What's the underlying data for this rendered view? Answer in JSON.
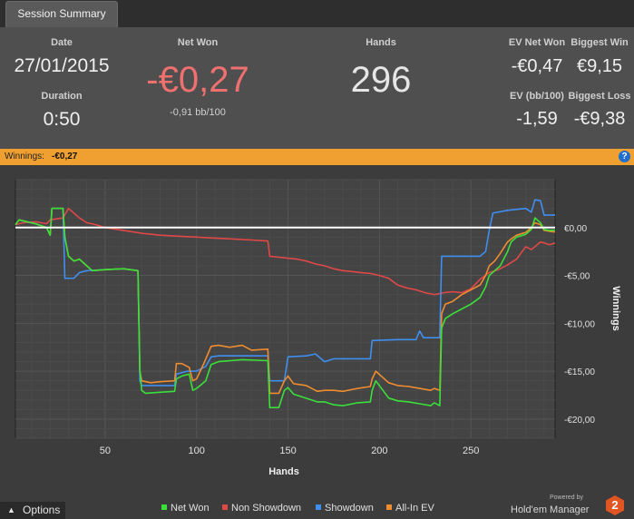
{
  "tab": {
    "label": "Session Summary"
  },
  "summary": {
    "date_label": "Date",
    "date_value": "27/01/2015",
    "duration_label": "Duration",
    "duration_value": "0:50",
    "net_won_label": "Net Won",
    "net_won_value": "-€0,27",
    "net_won_bb": "-0,91 bb/100",
    "hands_label": "Hands",
    "hands_value": "296",
    "ev_net_won_label": "EV Net Won",
    "ev_net_won_value": "-€0,47",
    "biggest_win_label": "Biggest Win",
    "biggest_win_value": "€9,15",
    "ev_bb_label": "EV (bb/100)",
    "ev_bb_value": "-1,59",
    "biggest_loss_label": "Biggest Loss",
    "biggest_loss_value": "-€9,38"
  },
  "winnings_bar": {
    "label": "Winnings:",
    "value": "-€0,27",
    "help": "?"
  },
  "colors": {
    "net_won": "#3adf3a",
    "non_showdown": "#e04848",
    "showdown": "#3f8ff0",
    "allin_ev": "#f08c30",
    "zero_line": "#ffffff",
    "net_won_value": "#f07070"
  },
  "chart_data": {
    "type": "line",
    "xlabel": "Hands",
    "ylabel": "Winnings",
    "xlim": [
      1,
      296
    ],
    "ylim": [
      -22,
      5
    ],
    "x_ticks": [
      50,
      100,
      150,
      200,
      250
    ],
    "x_tick_labels": [
      "50",
      "100",
      "150",
      "200",
      "250"
    ],
    "y_ticks": [
      0,
      -5,
      -10,
      -15,
      -20
    ],
    "y_tick_labels": [
      "€0,00",
      "-€5,00",
      "-€10,00",
      "-€15,00",
      "-€20,00"
    ],
    "grid": true,
    "legend_position": "bottom",
    "series": [
      {
        "name": "Net Won",
        "color_key": "net_won",
        "points": [
          [
            1,
            0.3
          ],
          [
            3,
            0.8
          ],
          [
            12,
            0.4
          ],
          [
            18,
            0
          ],
          [
            20,
            -0.8
          ],
          [
            21,
            2
          ],
          [
            27,
            2
          ],
          [
            28,
            -1
          ],
          [
            30,
            -3
          ],
          [
            33,
            -3.5
          ],
          [
            36,
            -3.3
          ],
          [
            40,
            -4
          ],
          [
            43,
            -4.5
          ],
          [
            50,
            -4.4
          ],
          [
            60,
            -4.3
          ],
          [
            68,
            -4.5
          ],
          [
            69,
            -14.8
          ],
          [
            70,
            -17
          ],
          [
            72,
            -17.3
          ],
          [
            80,
            -17.2
          ],
          [
            88,
            -17.1
          ],
          [
            89,
            -15.8
          ],
          [
            92,
            -15.5
          ],
          [
            96,
            -15.3
          ],
          [
            98,
            -17
          ],
          [
            100,
            -16.8
          ],
          [
            105,
            -16
          ],
          [
            108,
            -14.3
          ],
          [
            112,
            -14
          ],
          [
            125,
            -13.8
          ],
          [
            139,
            -13.9
          ],
          [
            140,
            -18.8
          ],
          [
            145,
            -18.8
          ],
          [
            148,
            -17
          ],
          [
            150,
            -16.7
          ],
          [
            153,
            -17.4
          ],
          [
            166,
            -18.2
          ],
          [
            170,
            -18.2
          ],
          [
            175,
            -18.5
          ],
          [
            180,
            -18.6
          ],
          [
            188,
            -18.3
          ],
          [
            195,
            -18.2
          ],
          [
            196,
            -17
          ],
          [
            198,
            -16
          ],
          [
            205,
            -17.8
          ],
          [
            210,
            -18.1
          ],
          [
            216,
            -18.2
          ],
          [
            222,
            -18.4
          ],
          [
            228,
            -18.6
          ],
          [
            230,
            -18.3
          ],
          [
            233,
            -18.6
          ],
          [
            234,
            -10.5
          ],
          [
            236,
            -9.5
          ],
          [
            240,
            -9
          ],
          [
            245,
            -8.5
          ],
          [
            250,
            -8
          ],
          [
            255,
            -7.3
          ],
          [
            258,
            -6.2
          ],
          [
            260,
            -5
          ],
          [
            263,
            -4.5
          ],
          [
            266,
            -4
          ],
          [
            270,
            -2.5
          ],
          [
            272,
            -1.5
          ],
          [
            275,
            -1
          ],
          [
            280,
            -0.7
          ],
          [
            283,
            -0.2
          ],
          [
            285,
            1
          ],
          [
            288,
            0.5
          ],
          [
            290,
            -0.2
          ],
          [
            293,
            -0.3
          ],
          [
            296,
            -0.27
          ]
        ]
      },
      {
        "name": "Non Showdown",
        "color_key": "non_showdown",
        "points": [
          [
            1,
            0.3
          ],
          [
            5,
            0.5
          ],
          [
            12,
            0.6
          ],
          [
            18,
            0.4
          ],
          [
            20,
            0.8
          ],
          [
            27,
            1
          ],
          [
            30,
            2
          ],
          [
            33,
            1.5
          ],
          [
            36,
            1
          ],
          [
            40,
            0.5
          ],
          [
            45,
            0.3
          ],
          [
            50,
            0
          ],
          [
            60,
            -0.3
          ],
          [
            70,
            -0.6
          ],
          [
            80,
            -0.8
          ],
          [
            90,
            -0.9
          ],
          [
            100,
            -1
          ],
          [
            110,
            -1.1
          ],
          [
            120,
            -1.2
          ],
          [
            130,
            -1.3
          ],
          [
            139,
            -1.4
          ],
          [
            140,
            -3
          ],
          [
            145,
            -3.1
          ],
          [
            150,
            -3.2
          ],
          [
            155,
            -3.3
          ],
          [
            160,
            -3.5
          ],
          [
            165,
            -3.8
          ],
          [
            170,
            -4
          ],
          [
            175,
            -4.3
          ],
          [
            180,
            -4.5
          ],
          [
            185,
            -4.6
          ],
          [
            190,
            -4.7
          ],
          [
            195,
            -4.8
          ],
          [
            200,
            -5
          ],
          [
            205,
            -5.3
          ],
          [
            210,
            -6
          ],
          [
            215,
            -6.3
          ],
          [
            220,
            -6.5
          ],
          [
            225,
            -6.8
          ],
          [
            230,
            -7
          ],
          [
            235,
            -6.8
          ],
          [
            240,
            -6.7
          ],
          [
            245,
            -6.8
          ],
          [
            250,
            -6.4
          ],
          [
            255,
            -5.4
          ],
          [
            260,
            -4.7
          ],
          [
            265,
            -4.4
          ],
          [
            270,
            -3.9
          ],
          [
            275,
            -3.3
          ],
          [
            278,
            -2.5
          ],
          [
            280,
            -2
          ],
          [
            283,
            -2.3
          ],
          [
            285,
            -2
          ],
          [
            288,
            -1.5
          ],
          [
            290,
            -1.6
          ],
          [
            293,
            -1.8
          ],
          [
            296,
            -1.6
          ]
        ]
      },
      {
        "name": "Showdown",
        "color_key": "showdown",
        "points": [
          [
            1,
            0.3
          ],
          [
            3,
            0.8
          ],
          [
            12,
            0.4
          ],
          [
            18,
            0
          ],
          [
            20,
            -0.8
          ],
          [
            21,
            2
          ],
          [
            27,
            2
          ],
          [
            28,
            -5.3
          ],
          [
            33,
            -5.3
          ],
          [
            36,
            -4.7
          ],
          [
            40,
            -4.5
          ],
          [
            50,
            -4.4
          ],
          [
            60,
            -4.3
          ],
          [
            68,
            -4.5
          ],
          [
            69,
            -16
          ],
          [
            70,
            -16.5
          ],
          [
            80,
            -16.5
          ],
          [
            88,
            -16.5
          ],
          [
            89,
            -15.3
          ],
          [
            95,
            -15
          ],
          [
            100,
            -15
          ],
          [
            105,
            -14.5
          ],
          [
            108,
            -13.5
          ],
          [
            112,
            -13.4
          ],
          [
            139,
            -13.4
          ],
          [
            140,
            -16
          ],
          [
            148,
            -16
          ],
          [
            150,
            -13.5
          ],
          [
            160,
            -13.4
          ],
          [
            165,
            -13.2
          ],
          [
            170,
            -14
          ],
          [
            175,
            -13.7
          ],
          [
            185,
            -13.7
          ],
          [
            195,
            -13.7
          ],
          [
            196,
            -11.8
          ],
          [
            210,
            -11.7
          ],
          [
            220,
            -11.7
          ],
          [
            222,
            -10.8
          ],
          [
            224,
            -11.5
          ],
          [
            233,
            -11.5
          ],
          [
            234,
            -3
          ],
          [
            245,
            -3
          ],
          [
            250,
            -3
          ],
          [
            255,
            -3
          ],
          [
            258,
            -2.5
          ],
          [
            260,
            -0.3
          ],
          [
            262,
            1.5
          ],
          [
            270,
            1.8
          ],
          [
            280,
            2
          ],
          [
            283,
            1.6
          ],
          [
            285,
            2.9
          ],
          [
            288,
            2.8
          ],
          [
            290,
            1.3
          ],
          [
            293,
            1.3
          ],
          [
            296,
            1.3
          ]
        ]
      },
      {
        "name": "All-In EV",
        "color_key": "allin_ev",
        "points": [
          [
            1,
            0.3
          ],
          [
            3,
            0.8
          ],
          [
            12,
            0.4
          ],
          [
            18,
            0
          ],
          [
            20,
            -0.8
          ],
          [
            21,
            2
          ],
          [
            27,
            2
          ],
          [
            28,
            -1
          ],
          [
            30,
            -3
          ],
          [
            33,
            -3.5
          ],
          [
            36,
            -3.3
          ],
          [
            40,
            -4
          ],
          [
            43,
            -4.5
          ],
          [
            50,
            -4.4
          ],
          [
            60,
            -4.3
          ],
          [
            68,
            -4.5
          ],
          [
            69,
            -15
          ],
          [
            70,
            -16
          ],
          [
            75,
            -16.2
          ],
          [
            80,
            -16.1
          ],
          [
            88,
            -16
          ],
          [
            89,
            -14.2
          ],
          [
            92,
            -14.2
          ],
          [
            96,
            -14.6
          ],
          [
            98,
            -16
          ],
          [
            100,
            -15.8
          ],
          [
            104,
            -14.2
          ],
          [
            108,
            -12.4
          ],
          [
            112,
            -12.3
          ],
          [
            118,
            -12.5
          ],
          [
            125,
            -12.3
          ],
          [
            130,
            -12.8
          ],
          [
            139,
            -12.7
          ],
          [
            140,
            -17.3
          ],
          [
            145,
            -17.3
          ],
          [
            148,
            -16
          ],
          [
            150,
            -15.5
          ],
          [
            153,
            -16.3
          ],
          [
            160,
            -16.5
          ],
          [
            166,
            -17.1
          ],
          [
            170,
            -17
          ],
          [
            175,
            -17
          ],
          [
            180,
            -17.1
          ],
          [
            188,
            -16.8
          ],
          [
            195,
            -16.6
          ],
          [
            196,
            -15.8
          ],
          [
            198,
            -15
          ],
          [
            205,
            -16.2
          ],
          [
            210,
            -16.5
          ],
          [
            216,
            -16.6
          ],
          [
            222,
            -16.8
          ],
          [
            228,
            -17
          ],
          [
            230,
            -16.8
          ],
          [
            233,
            -17
          ],
          [
            234,
            -9
          ],
          [
            236,
            -8
          ],
          [
            240,
            -7.7
          ],
          [
            245,
            -7
          ],
          [
            250,
            -6.5
          ],
          [
            255,
            -6
          ],
          [
            258,
            -5
          ],
          [
            260,
            -4
          ],
          [
            263,
            -3.5
          ],
          [
            266,
            -2.7
          ],
          [
            270,
            -1.5
          ],
          [
            272,
            -1.2
          ],
          [
            275,
            -0.8
          ],
          [
            280,
            -0.5
          ],
          [
            283,
            0
          ],
          [
            285,
            0.5
          ],
          [
            288,
            0.3
          ],
          [
            290,
            -0.3
          ],
          [
            293,
            -0.4
          ],
          [
            296,
            -0.47
          ]
        ]
      }
    ],
    "zero_line": 0
  },
  "legend": [
    {
      "name": "Net Won",
      "color": "#3adf3a"
    },
    {
      "name": "Non Showdown",
      "color": "#e04848"
    },
    {
      "name": "Showdown",
      "color": "#3f8ff0"
    },
    {
      "name": "All-In EV",
      "color": "#f08c30"
    }
  ],
  "footer": {
    "options_label": "Options",
    "powered_by": "Powered by",
    "brand": "Hold'em Manager",
    "brand_badge": "2"
  }
}
